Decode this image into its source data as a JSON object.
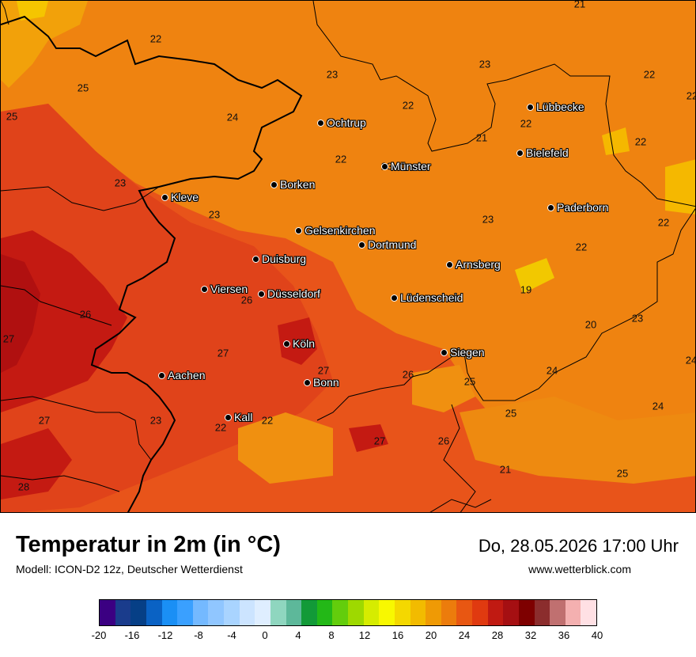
{
  "header": {
    "title": "Temperatur in 2m (in °C)",
    "model": "Modell: ICON-D2 12z, Deutscher Wetterdienst",
    "datetime": "Do, 28.05.2026 17:00 Uhr",
    "website": "www.wetterblick.com"
  },
  "cities": [
    {
      "name": "Lübbecke"
    },
    {
      "name": "Ochtrup"
    },
    {
      "name": "Bielefeld"
    },
    {
      "name": "Münster"
    },
    {
      "name": "Borken"
    },
    {
      "name": "Kleve"
    },
    {
      "name": "Paderborn"
    },
    {
      "name": "Gelsenkirchen"
    },
    {
      "name": "Dortmund"
    },
    {
      "name": "Duisburg"
    },
    {
      "name": "Arnsberg"
    },
    {
      "name": "Viersen"
    },
    {
      "name": "Düsseldorf"
    },
    {
      "name": "Lüdenscheid"
    },
    {
      "name": "Köln"
    },
    {
      "name": "Siegen"
    },
    {
      "name": "Aachen"
    },
    {
      "name": "Bonn"
    },
    {
      "name": "Kall"
    }
  ],
  "temperature_labels": [
    "21",
    "22",
    "25",
    "25",
    "24",
    "23",
    "23",
    "22",
    "22",
    "21",
    "22",
    "22",
    "22",
    "23",
    "23",
    "23",
    "23",
    "22",
    "22",
    "19",
    "20",
    "23",
    "26",
    "26",
    "27",
    "27",
    "27",
    "26",
    "25",
    "24",
    "24",
    "25",
    "24",
    "27",
    "23",
    "22",
    "22",
    "27",
    "26",
    "21",
    "25",
    "28",
    "22"
  ],
  "legend": {
    "ticks": [
      "-20",
      "-16",
      "-12",
      "-8",
      "-4",
      "0",
      "4",
      "8",
      "12",
      "16",
      "20",
      "24",
      "28",
      "32",
      "36",
      "40"
    ],
    "colors": [
      "#3b0082",
      "#1a3c8c",
      "#063f86",
      "#0a62c4",
      "#1a8ff5",
      "#3aa0ff",
      "#74b9ff",
      "#90c6ff",
      "#a9d4ff",
      "#cce4ff",
      "#dfeeff",
      "#8fd6bf",
      "#5db89a",
      "#129a38",
      "#23b817",
      "#63cd0c",
      "#9ed900",
      "#d6ec00",
      "#f8f800",
      "#f4d800",
      "#f2bb00",
      "#ef9a05",
      "#ec7c0c",
      "#e85712",
      "#e03a10",
      "#c01a12",
      "#a50f12",
      "#7e0000",
      "#8b2d2d",
      "#c07070",
      "#f4b0b0",
      "#ffe0e4"
    ]
  }
}
